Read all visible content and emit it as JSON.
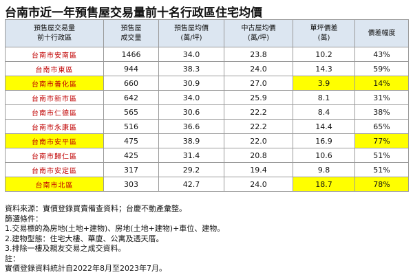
{
  "header": {
    "title": "台南市近一年預售屋交易量前十名行政區住宅均價"
  },
  "table": {
    "columns": [
      [
        "預售屋交易量",
        "前十行政區"
      ],
      [
        "預售屋",
        "成交量"
      ],
      [
        "預售屋均價",
        "(萬/坪)"
      ],
      [
        "中古屋均價",
        "(萬/坪)"
      ],
      [
        "單坪價差",
        "(萬)"
      ],
      [
        "價差幅度"
      ]
    ],
    "rows": [
      [
        "台南市安南區",
        "1466",
        "34.0",
        "23.8",
        "10.2",
        "43%"
      ],
      [
        "台南市東區",
        "944",
        "38.3",
        "24.0",
        "14.3",
        "59%"
      ],
      [
        "台南市善化區",
        "660",
        "30.9",
        "27.0",
        "3.9",
        "14%"
      ],
      [
        "台南市新市區",
        "642",
        "34.0",
        "25.9",
        "8.1",
        "31%"
      ],
      [
        "台南市仁德區",
        "565",
        "30.6",
        "22.2",
        "8.4",
        "38%"
      ],
      [
        "台南市永康區",
        "516",
        "36.6",
        "22.2",
        "14.4",
        "65%"
      ],
      [
        "台南市安平區",
        "475",
        "38.9",
        "22.0",
        "16.9",
        "77%"
      ],
      [
        "台南市歸仁區",
        "425",
        "31.4",
        "20.8",
        "10.6",
        "51%"
      ],
      [
        "台南市安定區",
        "317",
        "29.2",
        "19.4",
        "9.8",
        "51%"
      ],
      [
        "台南市北區",
        "303",
        "42.7",
        "24.0",
        "18.7",
        "78%"
      ]
    ]
  },
  "notes": [
    "資料來源：實價登錄買賣備查資料；台慶不動產彙整。",
    "篩選條件：",
    "1.交易標的為房地(土地+建物)、房地(土地+建物)+車位、建物。",
    "2.建物型態：住宅大樓、華廈、公寓及透天厝。",
    "3.排除一樓及親友交易之成交資料。",
    "註：",
    "實價登錄資料統計自2022年8月至2023年7月。"
  ]
}
